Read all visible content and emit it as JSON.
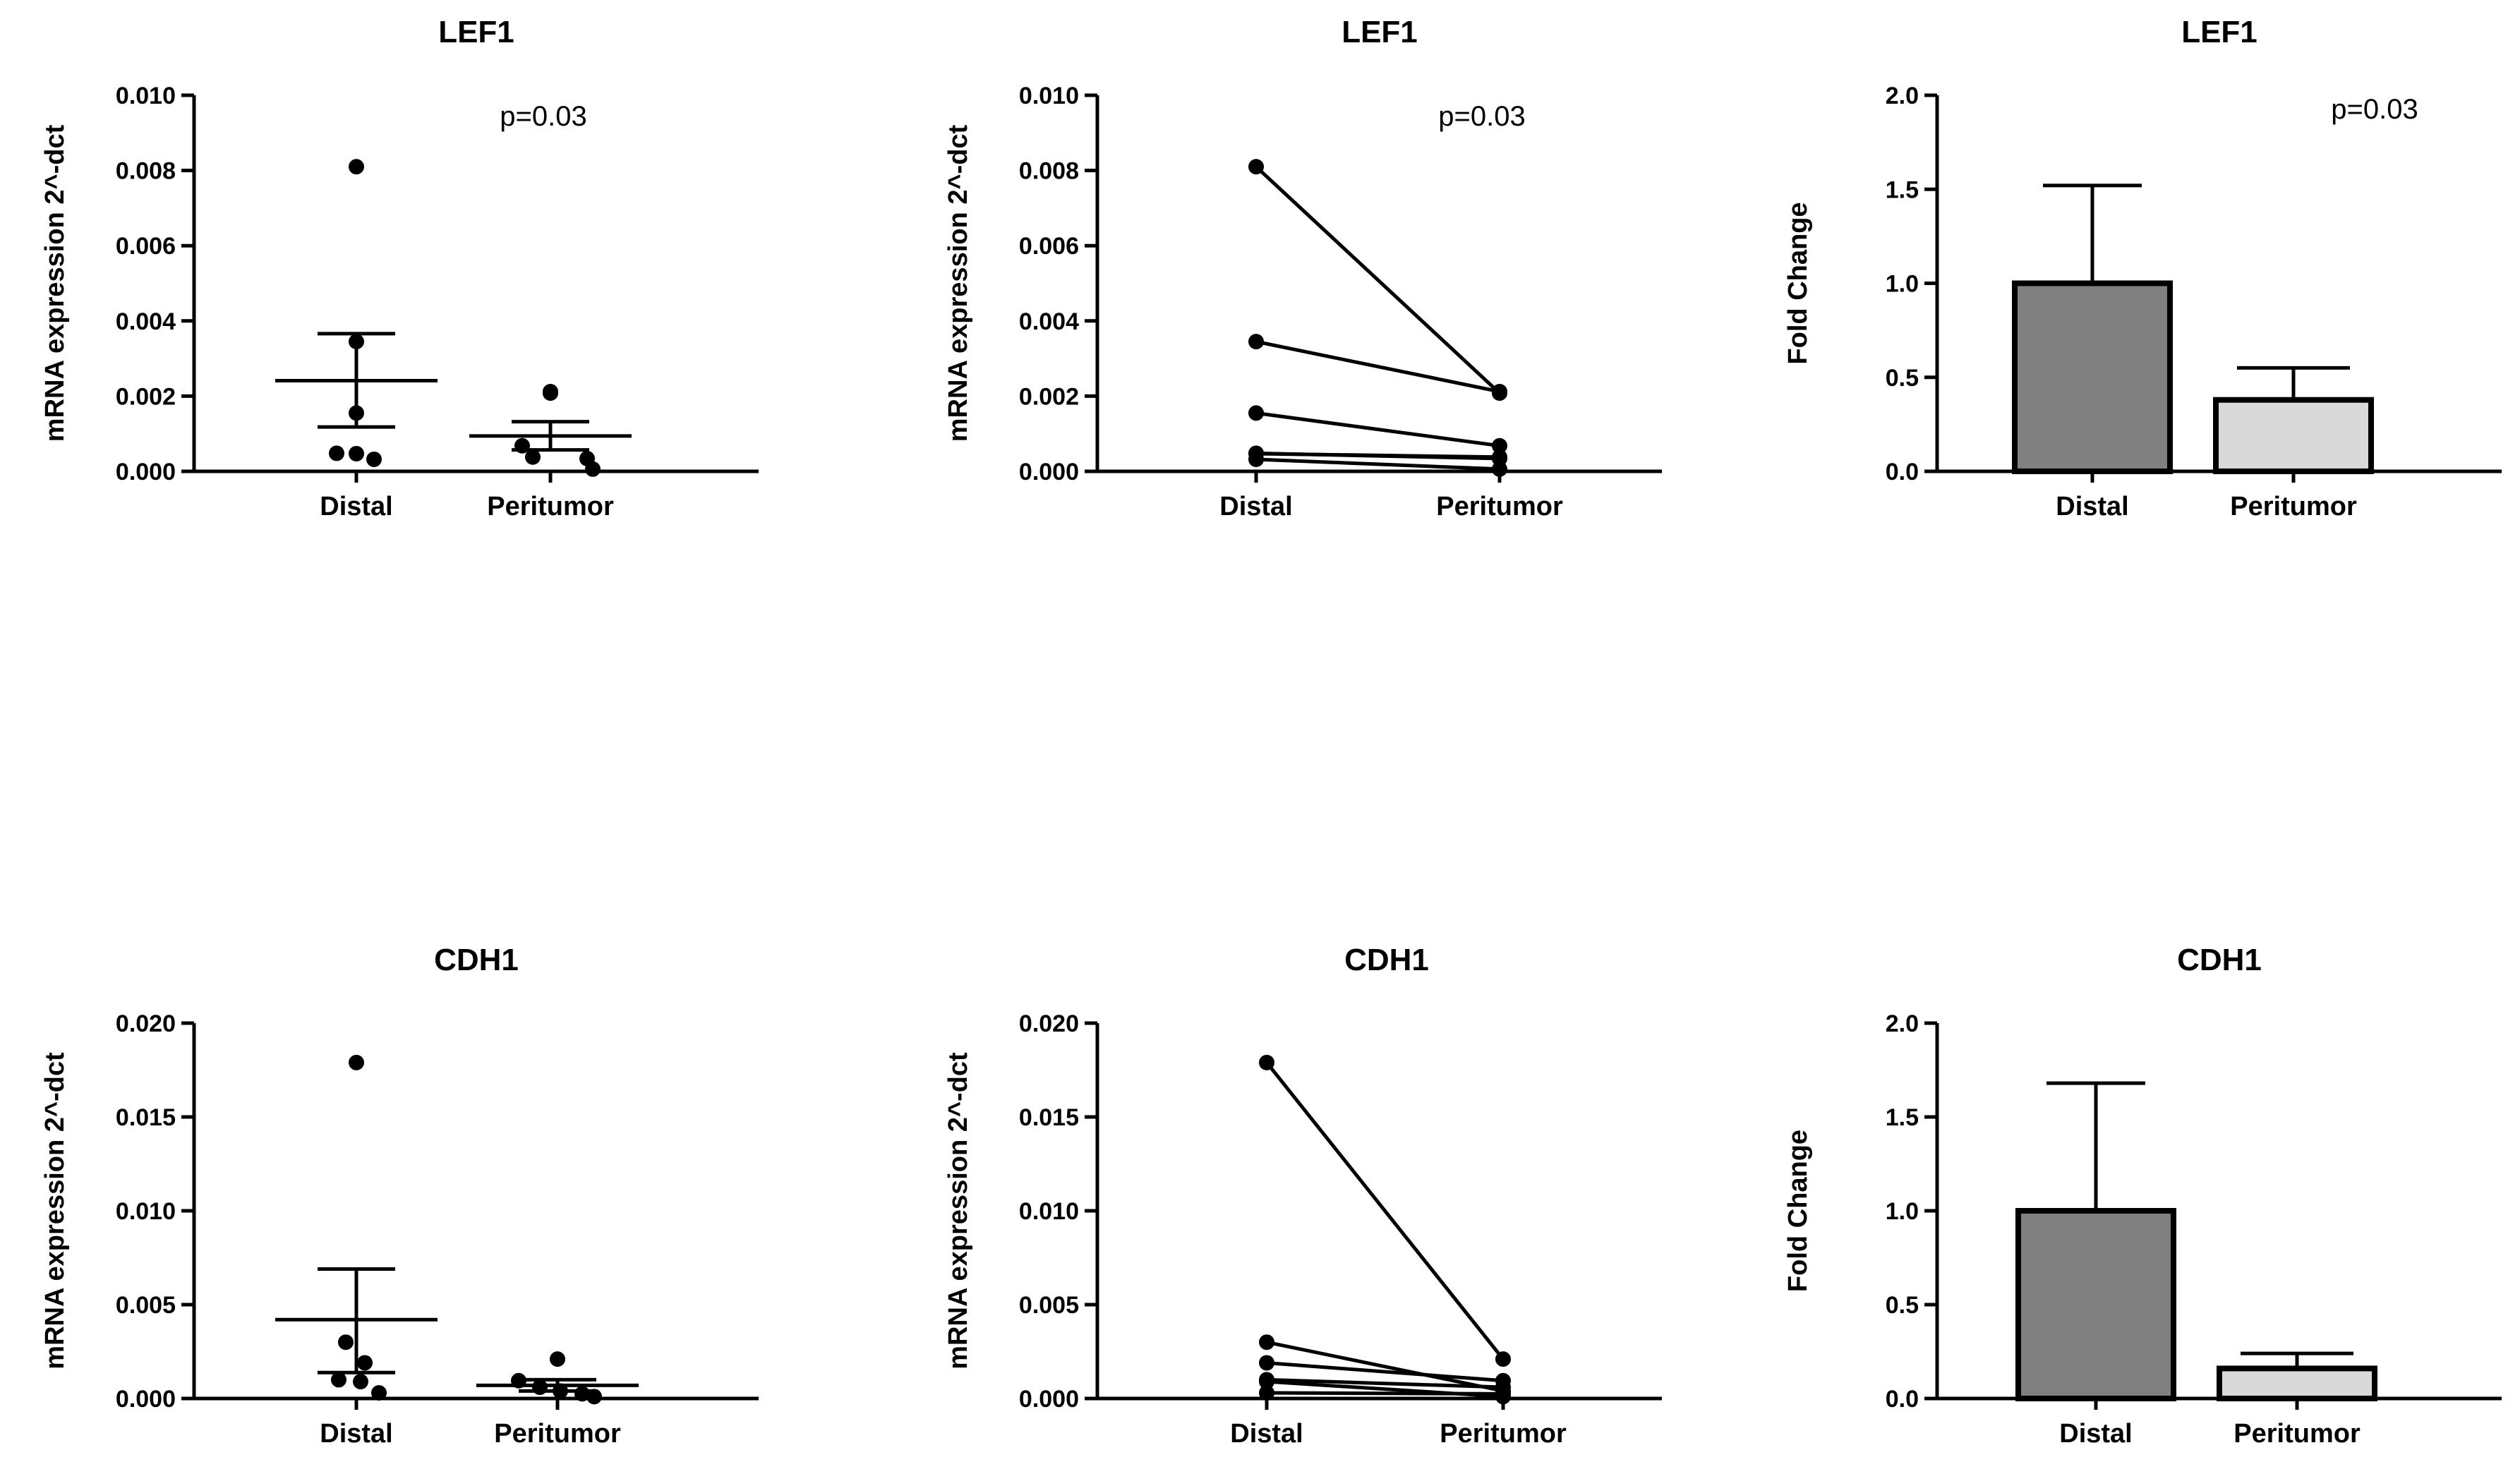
{
  "chart_data": [
    {
      "type": "scatter",
      "title": "LEF1",
      "ylabel": "mRNA expression 2^-dct",
      "xlabel": "",
      "categories": [
        "Distal",
        "Peritumor"
      ],
      "ylim": [
        0,
        0.01
      ],
      "yticks": [
        "0.000",
        "0.002",
        "0.004",
        "0.006",
        "0.008",
        "0.010"
      ],
      "annotation": "p=0.03",
      "series": [
        {
          "name": "Distal",
          "values": [
            0.0081,
            0.00345,
            0.00155,
            0.00048,
            0.00047,
            0.00032
          ],
          "mean": 0.00241,
          "sem_low": 0.00118,
          "sem_high": 0.00366
        },
        {
          "name": "Peritumor",
          "values": [
            0.00208,
            0.00212,
            0.00068,
            0.00038,
            0.00034,
            6e-05
          ],
          "mean": 0.00094,
          "sem_low": 0.00057,
          "sem_high": 0.00132
        }
      ]
    },
    {
      "type": "line",
      "title": "LEF1",
      "ylabel": "mRNA expression 2^-dct",
      "xlabel": "",
      "categories": [
        "Distal",
        "Peritumor"
      ],
      "ylim": [
        0,
        0.01
      ],
      "yticks": [
        "0.000",
        "0.002",
        "0.004",
        "0.006",
        "0.008",
        "0.010"
      ],
      "annotation": "p=0.03",
      "pairs": [
        [
          0.0081,
          0.00208
        ],
        [
          0.00345,
          0.00212
        ],
        [
          0.00155,
          0.00068
        ],
        [
          0.00048,
          0.00034
        ],
        [
          0.00047,
          0.00038
        ],
        [
          0.00032,
          6e-05
        ]
      ]
    },
    {
      "type": "bar",
      "title": "LEF1",
      "ylabel": "Fold Change",
      "xlabel": "",
      "categories": [
        "Distal",
        "Peritumor"
      ],
      "ylim": [
        0,
        2.0
      ],
      "yticks": [
        "0.0",
        "0.5",
        "1.0",
        "1.5",
        "2.0"
      ],
      "annotation": "p=0.03",
      "values": [
        1.0,
        0.38
      ],
      "errors": [
        1.52,
        0.55
      ],
      "colors": [
        "#808080",
        "#d9d9d9"
      ]
    },
    {
      "type": "scatter",
      "title": "CDH1",
      "ylabel": "mRNA expression 2^-dct",
      "xlabel": "",
      "categories": [
        "Distal",
        "Peritumor"
      ],
      "ylim": [
        0,
        0.02
      ],
      "yticks": [
        "0.000",
        "0.005",
        "0.010",
        "0.015",
        "0.020"
      ],
      "annotation": "",
      "series": [
        {
          "name": "Distal",
          "values": [
            0.0179,
            0.003,
            0.0019,
            0.001,
            0.0009,
            0.0003
          ],
          "mean": 0.0042,
          "sem_low": 0.00138,
          "sem_high": 0.0069
        },
        {
          "name": "Peritumor",
          "values": [
            0.0021,
            0.00095,
            0.0006,
            0.0004,
            0.00025,
            0.0001
          ],
          "mean": 0.0007,
          "sem_low": 0.0004,
          "sem_high": 0.001
        }
      ]
    },
    {
      "type": "line",
      "title": "CDH1",
      "ylabel": "mRNA expression 2^-dct",
      "xlabel": "",
      "categories": [
        "Distal",
        "Peritumor"
      ],
      "ylim": [
        0,
        0.02
      ],
      "yticks": [
        "0.000",
        "0.005",
        "0.010",
        "0.015",
        "0.020"
      ],
      "annotation": "",
      "pairs": [
        [
          0.0179,
          0.0021
        ],
        [
          0.003,
          0.0004
        ],
        [
          0.0019,
          0.00095
        ],
        [
          0.001,
          0.0006
        ],
        [
          0.0009,
          0.0001
        ],
        [
          0.0003,
          0.00025
        ]
      ]
    },
    {
      "type": "bar",
      "title": "CDH1",
      "ylabel": "Fold Change",
      "xlabel": "",
      "categories": [
        "Distal",
        "Peritumor"
      ],
      "ylim": [
        0,
        2.0
      ],
      "yticks": [
        "0.0",
        "0.5",
        "1.0",
        "1.5",
        "2.0"
      ],
      "annotation": "",
      "values": [
        1.0,
        0.16
      ],
      "errors": [
        1.68,
        0.24
      ],
      "colors": [
        "#808080",
        "#d9d9d9"
      ]
    }
  ]
}
